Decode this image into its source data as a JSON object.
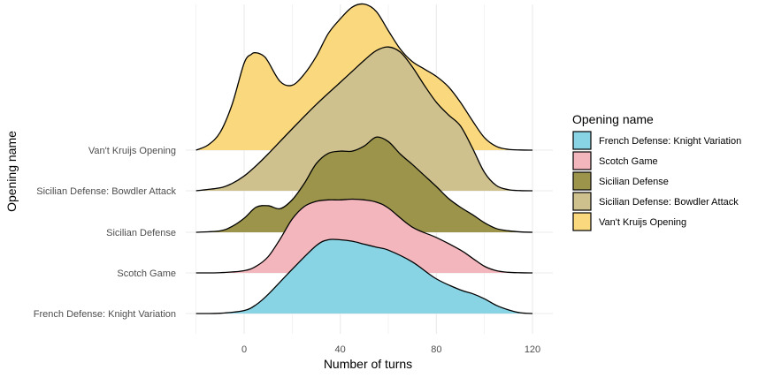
{
  "chart_data": {
    "type": "ridgeline",
    "xlabel": "Number of turns",
    "ylabel": "Opening name",
    "xlim": [
      -20,
      120
    ],
    "x_ticks": [
      0,
      40,
      80,
      120
    ],
    "x_tick_labels": [
      "0",
      "40",
      "80",
      "120"
    ],
    "grid": true,
    "legend": {
      "title": "Opening name",
      "position": "right"
    },
    "series": [
      {
        "name": "French Defense: Knight Variation",
        "color": "#88d4e4",
        "x": [
          -20,
          -10,
          0,
          5,
          10,
          20,
          30,
          35,
          40,
          45,
          50,
          55,
          60,
          70,
          80,
          90,
          95,
          100,
          105,
          110,
          115,
          120
        ],
        "density": [
          0.0,
          0.004,
          0.04,
          0.12,
          0.26,
          0.6,
          0.92,
          1.0,
          1.0,
          0.98,
          0.94,
          0.9,
          0.86,
          0.7,
          0.47,
          0.32,
          0.27,
          0.2,
          0.11,
          0.05,
          0.01,
          0.0
        ]
      },
      {
        "name": "Scotch Game",
        "color": "#f4b6bd",
        "x": [
          -20,
          -10,
          0,
          5,
          10,
          15,
          20,
          25,
          30,
          35,
          40,
          45,
          50,
          55,
          60,
          70,
          80,
          90,
          95,
          100,
          105,
          110,
          115,
          120
        ],
        "density": [
          0.0,
          0.003,
          0.03,
          0.09,
          0.22,
          0.46,
          0.73,
          0.9,
          0.97,
          0.99,
          0.99,
          1.0,
          0.99,
          0.96,
          0.88,
          0.62,
          0.48,
          0.31,
          0.2,
          0.09,
          0.03,
          0.008,
          0.002,
          0.0
        ]
      },
      {
        "name": "Sicilian Defense",
        "color": "#9b944a",
        "x": [
          -20,
          -10,
          -5,
          0,
          5,
          10,
          15,
          20,
          25,
          30,
          35,
          40,
          45,
          50,
          55,
          60,
          65,
          70,
          75,
          80,
          85,
          90,
          95,
          100,
          105,
          110,
          115,
          120
        ],
        "density": [
          0.0,
          0.02,
          0.08,
          0.19,
          0.34,
          0.36,
          0.32,
          0.44,
          0.66,
          0.93,
          1.07,
          1.1,
          1.1,
          1.17,
          1.29,
          1.23,
          1.06,
          0.92,
          0.77,
          0.62,
          0.46,
          0.34,
          0.24,
          0.13,
          0.05,
          0.02,
          0.005,
          0.0
        ]
      },
      {
        "name": "Sicilian Defense: Bowdler Attack",
        "color": "#cec18e",
        "x": [
          -20,
          -10,
          -5,
          0,
          5,
          10,
          20,
          30,
          40,
          45,
          50,
          55,
          60,
          65,
          70,
          75,
          80,
          85,
          90,
          95,
          100,
          105,
          110,
          115,
          120
        ],
        "density": [
          0.0,
          0.04,
          0.1,
          0.2,
          0.34,
          0.5,
          0.84,
          1.17,
          1.47,
          1.62,
          1.77,
          1.9,
          1.95,
          1.88,
          1.68,
          1.43,
          1.2,
          1.03,
          0.88,
          0.58,
          0.25,
          0.07,
          0.015,
          0.002,
          0.0
        ]
      },
      {
        "name": "Van't Kruijs Opening",
        "color": "#fad87e",
        "x": [
          -20,
          -15,
          -10,
          -5,
          0,
          3,
          5,
          8,
          10,
          15,
          20,
          25,
          30,
          35,
          40,
          45,
          50,
          55,
          60,
          65,
          70,
          75,
          80,
          85,
          90,
          95,
          100,
          105,
          110,
          115,
          120
        ],
        "density": [
          0.0,
          0.07,
          0.24,
          0.62,
          1.18,
          1.3,
          1.32,
          1.28,
          1.2,
          0.93,
          0.88,
          1.03,
          1.27,
          1.58,
          1.78,
          1.94,
          1.98,
          1.88,
          1.62,
          1.37,
          1.2,
          1.1,
          1.0,
          0.86,
          0.65,
          0.4,
          0.17,
          0.05,
          0.01,
          0.002,
          0.0
        ]
      }
    ]
  }
}
